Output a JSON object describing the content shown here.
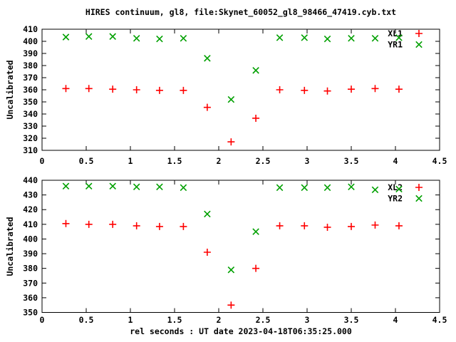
{
  "title": "HIRES continuum, gl8, file:Skynet_60052_gl8_98466_47419.cyb.txt",
  "xlabel": "rel seconds : UT date 2023-04-18T06:35:25.000",
  "colors": {
    "background": "#ffffff",
    "axis": "#000000",
    "text": "#000000",
    "xl_series": "#ff0000",
    "yr_series": "#00a000"
  },
  "chart_data": [
    {
      "type": "scatter",
      "panel": "top",
      "ylabel": "Uncalibrated",
      "xlim": [
        0,
        4.5
      ],
      "ylim": [
        310,
        410
      ],
      "grid": false,
      "legend_position": "top-right-inside",
      "xtick_values": [
        0,
        0.5,
        1,
        1.5,
        2,
        2.5,
        3,
        3.5,
        4,
        4.5
      ],
      "xtick_labels": [
        "0",
        "0.5",
        "1",
        "1.5",
        "2",
        "2.5",
        "3",
        "3.5",
        "4",
        "4.5"
      ],
      "ytick_values": [
        310,
        320,
        330,
        340,
        350,
        360,
        370,
        380,
        390,
        400,
        410
      ],
      "x": [
        0.27,
        0.53,
        0.8,
        1.07,
        1.33,
        1.6,
        1.87,
        2.14,
        2.42,
        2.69,
        2.97,
        3.23,
        3.5,
        3.77,
        4.04
      ],
      "series": [
        {
          "name": "XL1",
          "marker": "plus-icon",
          "color": "#ff0000",
          "values": [
            361,
            361,
            360.5,
            360,
            359.5,
            359.5,
            345.5,
            317,
            336.5,
            360,
            359.5,
            359,
            360.5,
            361,
            360.5
          ]
        },
        {
          "name": "YR1",
          "marker": "cross-icon",
          "color": "#00a000",
          "values": [
            403.5,
            404,
            404,
            402.5,
            402,
            402.5,
            386,
            352,
            376,
            403,
            403,
            402,
            402.5,
            402.5,
            403
          ]
        }
      ]
    },
    {
      "type": "scatter",
      "panel": "bottom",
      "ylabel": "Uncalibrated",
      "xlim": [
        0,
        4.5
      ],
      "ylim": [
        350,
        440
      ],
      "grid": false,
      "legend_position": "top-right-inside",
      "xtick_values": [
        0,
        0.5,
        1,
        1.5,
        2,
        2.5,
        3,
        3.5,
        4,
        4.5
      ],
      "xtick_labels": [
        "0",
        "0.5",
        "1",
        "1.5",
        "2",
        "2.5",
        "3",
        "3.5",
        "4",
        "4.5"
      ],
      "ytick_values": [
        350,
        360,
        370,
        380,
        390,
        400,
        410,
        420,
        430,
        440
      ],
      "x": [
        0.27,
        0.53,
        0.8,
        1.07,
        1.33,
        1.6,
        1.87,
        2.14,
        2.42,
        2.69,
        2.97,
        3.23,
        3.5,
        3.77,
        4.04
      ],
      "series": [
        {
          "name": "XL2",
          "marker": "plus-icon",
          "color": "#ff0000",
          "values": [
            410.5,
            410,
            410,
            409,
            408.5,
            408.5,
            391,
            355,
            380,
            409,
            409,
            408,
            408.5,
            409.5,
            409
          ]
        },
        {
          "name": "YR2",
          "marker": "cross-icon",
          "color": "#00a000",
          "values": [
            436,
            436,
            436,
            435.5,
            435.5,
            435,
            417,
            379,
            405,
            435,
            435,
            435,
            435.5,
            433.5,
            434
          ]
        }
      ]
    }
  ]
}
